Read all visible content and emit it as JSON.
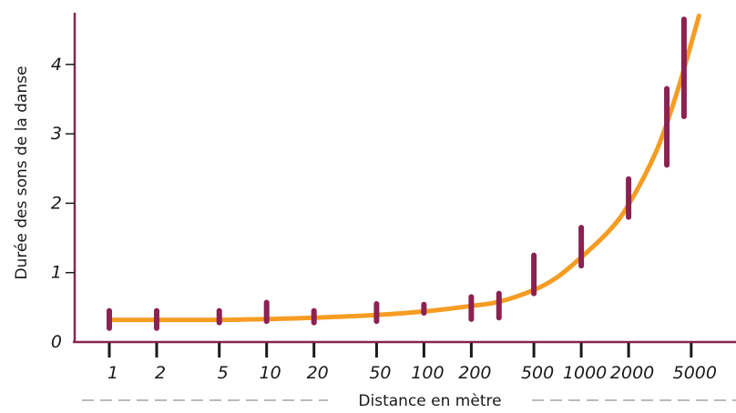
{
  "chart_data": {
    "type": "line",
    "title": "",
    "xlabel": "Distance en mètre",
    "ylabel": "Durée des sons de la danse",
    "x_scale": "log",
    "x_ticks": [
      "1",
      "2",
      "5",
      "10",
      "20",
      "50",
      "100",
      "200",
      "500",
      "1000",
      "2000",
      "5000"
    ],
    "y_ticks": [
      "0",
      "1",
      "2",
      "3",
      "4"
    ],
    "ylim": [
      0,
      4.7
    ],
    "grid": false,
    "colors": {
      "axis": "#8b2252",
      "curve": "#f59c23",
      "bars": "#8b2252",
      "dash": "#777777"
    },
    "error_bars": [
      {
        "x": 1,
        "low": 0.2,
        "high": 0.45
      },
      {
        "x": 2,
        "low": 0.2,
        "high": 0.45
      },
      {
        "x": 5,
        "low": 0.28,
        "high": 0.45
      },
      {
        "x": 10,
        "low": 0.3,
        "high": 0.57
      },
      {
        "x": 20,
        "low": 0.28,
        "high": 0.45
      },
      {
        "x": 50,
        "low": 0.3,
        "high": 0.55
      },
      {
        "x": 100,
        "low": 0.42,
        "high": 0.54
      },
      {
        "x": 200,
        "low": 0.33,
        "high": 0.65
      },
      {
        "x": 300,
        "low": 0.35,
        "high": 0.7
      },
      {
        "x": 500,
        "low": 0.7,
        "high": 1.25
      },
      {
        "x": 1000,
        "low": 1.1,
        "high": 1.65
      },
      {
        "x": 2000,
        "low": 1.8,
        "high": 2.35
      },
      {
        "x": 3500,
        "low": 2.55,
        "high": 3.65
      },
      {
        "x": 4500,
        "low": 3.25,
        "high": 4.65
      }
    ],
    "curve": [
      {
        "x": 1,
        "y": 0.32
      },
      {
        "x": 2,
        "y": 0.32
      },
      {
        "x": 5,
        "y": 0.32
      },
      {
        "x": 10,
        "y": 0.33
      },
      {
        "x": 20,
        "y": 0.35
      },
      {
        "x": 50,
        "y": 0.39
      },
      {
        "x": 100,
        "y": 0.44
      },
      {
        "x": 200,
        "y": 0.52
      },
      {
        "x": 300,
        "y": 0.58
      },
      {
        "x": 500,
        "y": 0.75
      },
      {
        "x": 700,
        "y": 0.93
      },
      {
        "x": 1000,
        "y": 1.22
      },
      {
        "x": 1500,
        "y": 1.6
      },
      {
        "x": 2000,
        "y": 1.98
      },
      {
        "x": 3000,
        "y": 2.75
      },
      {
        "x": 4000,
        "y": 3.55
      },
      {
        "x": 5000,
        "y": 4.3
      },
      {
        "x": 5600,
        "y": 4.7
      }
    ]
  }
}
